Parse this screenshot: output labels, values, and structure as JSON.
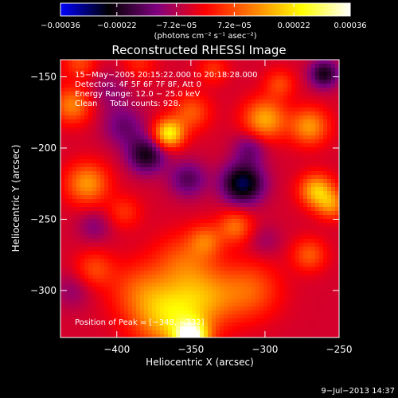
{
  "chart_data": {
    "type": "heatmap",
    "title": "Reconstructed RHESSI Image",
    "xlabel": "Heliocentric X (arcsec)",
    "ylabel": "Heliocentric Y (arcsec)",
    "xlim": [
      -438,
      -250
    ],
    "ylim": [
      -333,
      -138
    ],
    "x_ticks": [
      -400,
      -350,
      -300,
      -250
    ],
    "y_ticks": [
      -150,
      -200,
      -250,
      -300
    ],
    "x_tick_labels": [
      "−400",
      "−350",
      "−300",
      "−250"
    ],
    "y_tick_labels": [
      "−150",
      "−200",
      "−250",
      "−300"
    ],
    "colorbar": {
      "range": [
        -0.00036,
        0.00036
      ],
      "tick_values": [
        -0.00036,
        -0.00022,
        -7.2e-05,
        7.2e-05,
        0.00022,
        0.00036
      ],
      "tick_labels": [
        "−0.00036",
        "−0.00022",
        "−7.2e−05",
        "7.2e−05",
        "0.00022",
        "0.00036"
      ],
      "unit_label": "(photons cm⁻² s⁻¹ asec⁻²)",
      "colors": [
        "#0000ff",
        "#000000",
        "#800080",
        "#ff0000",
        "#ff8000",
        "#ffff00",
        "#ffffff"
      ]
    },
    "annotations": [
      "15−May−2005 20:15:22.000 to 20:18:28.000",
      "Detectors: 4F 5F 6F 7F 8F, Att 0",
      "Energy Range: 12.0 − 25.0 keV",
      "Clean     Total counts: 928."
    ],
    "peak_label": "Position of Peak = [−348, −332]",
    "peak": {
      "x": -348,
      "y": -332,
      "intensity": 0.00036
    },
    "blobs": [
      {
        "x": -350,
        "y": -333,
        "value": 0.00036,
        "s": 8
      },
      {
        "x": -365,
        "y": -318,
        "value": 0.00022,
        "s": 16
      },
      {
        "x": -340,
        "y": -305,
        "value": 0.00015,
        "s": 15
      },
      {
        "x": -310,
        "y": -300,
        "value": 0.00012,
        "s": 14
      },
      {
        "x": -385,
        "y": -300,
        "value": 0.0001,
        "s": 14
      },
      {
        "x": -355,
        "y": -280,
        "value": 0.00011,
        "s": 14
      },
      {
        "x": -365,
        "y": -190,
        "value": 0.00028,
        "s": 7
      },
      {
        "x": -350,
        "y": -175,
        "value": 0.00012,
        "s": 9
      },
      {
        "x": -430,
        "y": -170,
        "value": 0.00016,
        "s": 9
      },
      {
        "x": -425,
        "y": -140,
        "value": 0.0001,
        "s": 8
      },
      {
        "x": -420,
        "y": -225,
        "value": 0.00018,
        "s": 10
      },
      {
        "x": -300,
        "y": -180,
        "value": 0.0002,
        "s": 10
      },
      {
        "x": -270,
        "y": -185,
        "value": 0.00018,
        "s": 9
      },
      {
        "x": -265,
        "y": -230,
        "value": 0.00022,
        "s": 8
      },
      {
        "x": -255,
        "y": -240,
        "value": 0.00015,
        "s": 7
      },
      {
        "x": -320,
        "y": -255,
        "value": 0.00014,
        "s": 8
      },
      {
        "x": -340,
        "y": -265,
        "value": 0.00012,
        "s": 8
      },
      {
        "x": -270,
        "y": -275,
        "value": 0.00012,
        "s": 8
      },
      {
        "x": -415,
        "y": -285,
        "value": 0.0001,
        "s": 9
      },
      {
        "x": -395,
        "y": -245,
        "value": 8e-05,
        "s": 8
      },
      {
        "x": -290,
        "y": -155,
        "value": 0.0001,
        "s": 7
      },
      {
        "x": -335,
        "y": -145,
        "value": 8e-05,
        "s": 7
      },
      {
        "x": -385,
        "y": -140,
        "value": 7e-05,
        "s": 8
      },
      {
        "x": -405,
        "y": -160,
        "value": -6e-05,
        "s": 10
      },
      {
        "x": -380,
        "y": -205,
        "value": -0.00018,
        "s": 9
      },
      {
        "x": -395,
        "y": -185,
        "value": -0.0001,
        "s": 10
      },
      {
        "x": -315,
        "y": -225,
        "value": -0.00024,
        "s": 10
      },
      {
        "x": -310,
        "y": -200,
        "value": -0.0001,
        "s": 8
      },
      {
        "x": -352,
        "y": -222,
        "value": -0.00012,
        "s": 9
      },
      {
        "x": -260,
        "y": -148,
        "value": -0.00018,
        "s": 7
      },
      {
        "x": -415,
        "y": -255,
        "value": -7e-05,
        "s": 8
      },
      {
        "x": -430,
        "y": -300,
        "value": -6e-05,
        "s": 9
      },
      {
        "x": -300,
        "y": -265,
        "value": -5e-05,
        "s": 8
      }
    ]
  },
  "timestamp": "9−Jul−2013 14:37"
}
